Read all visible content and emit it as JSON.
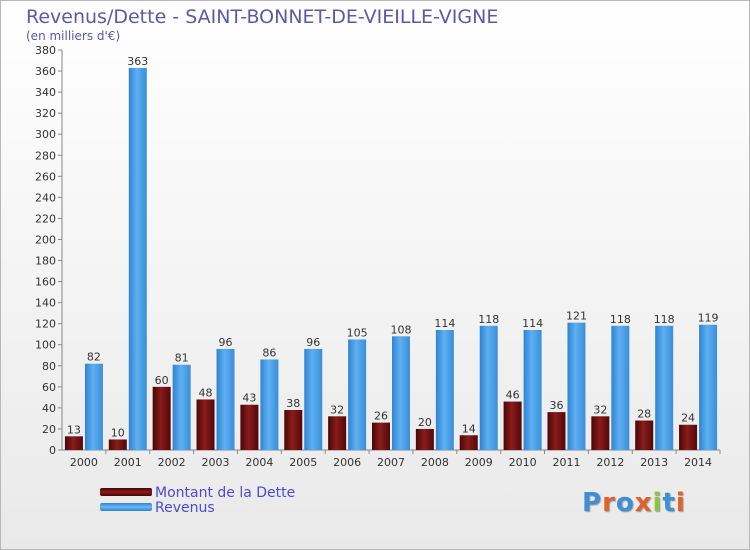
{
  "header": {
    "title": "Revenus/Dette - SAINT-BONNET-DE-VIEILLE-VIGNE",
    "subtitle": "(en milliers d'€)"
  },
  "legend": {
    "items": [
      {
        "label": "Montant de la Dette",
        "color": "#6b0f0f"
      },
      {
        "label": "Revenus",
        "color": "#4a9de6"
      }
    ]
  },
  "logo": {
    "text": "Proxiti",
    "colors": [
      "#3d8fd6",
      "#e0622a",
      "#3d8fd6",
      "#e0622a",
      "#8cc63f",
      "#3d8fd6",
      "#e0622a"
    ]
  },
  "chart_data": {
    "type": "bar",
    "categories": [
      "2000",
      "2001",
      "2002",
      "2003",
      "2004",
      "2005",
      "2006",
      "2007",
      "2008",
      "2009",
      "2010",
      "2011",
      "2012",
      "2013",
      "2014"
    ],
    "series": [
      {
        "name": "Montant de la Dette",
        "color": "#6b0f0f",
        "values": [
          13,
          10,
          60,
          48,
          43,
          38,
          32,
          26,
          20,
          14,
          46,
          36,
          32,
          28,
          24
        ]
      },
      {
        "name": "Revenus",
        "color": "#4a9de6",
        "values": [
          82,
          363,
          81,
          96,
          86,
          96,
          105,
          108,
          114,
          118,
          114,
          121,
          118,
          118,
          119
        ]
      }
    ],
    "ylim": [
      0,
      380
    ],
    "ytick_step": 20,
    "grid": false,
    "legend_position": "bottom-left"
  }
}
